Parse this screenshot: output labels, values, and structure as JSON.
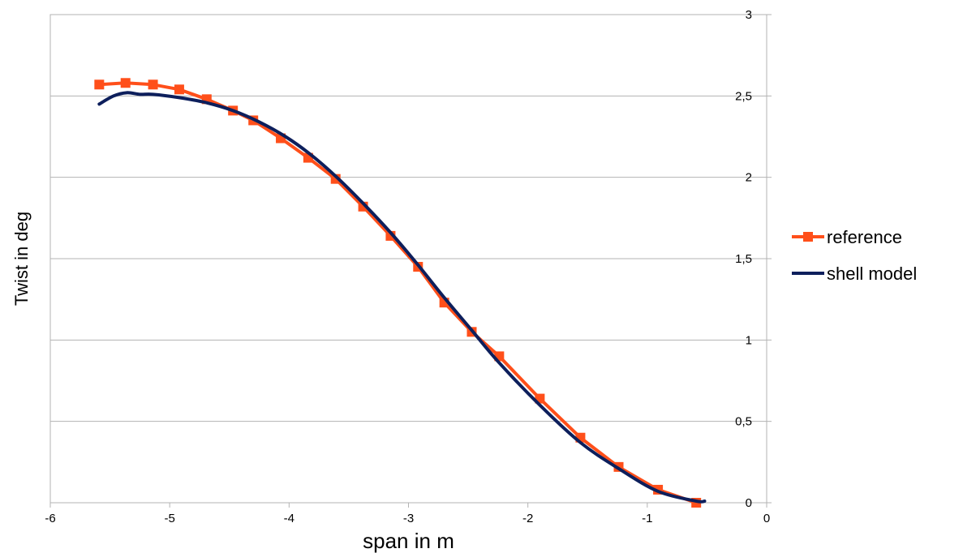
{
  "chart_data": {
    "type": "line",
    "title": "",
    "xlabel": "span in m",
    "ylabel": "Twist in deg",
    "xlim": [
      -6,
      0
    ],
    "ylim": [
      0,
      3
    ],
    "x_ticks": [
      -6,
      -5,
      -4,
      -3,
      -2,
      -1,
      0
    ],
    "x_tick_labels": [
      "-6",
      "-5",
      "-4",
      "-3",
      "-2",
      "-1",
      "0"
    ],
    "y_ticks": [
      0,
      0.5,
      1,
      1.5,
      2,
      2.5,
      3
    ],
    "y_tick_labels": [
      "0",
      "0,5",
      "1",
      "1,5",
      "2",
      "2,5",
      "3"
    ],
    "y_axis_position": "right",
    "grid": "horizontal",
    "legend_position": "right",
    "series": [
      {
        "name": "reference",
        "color": "#ff4f1a",
        "marker": "square",
        "x": [
          -5.59,
          -5.37,
          -5.14,
          -4.92,
          -4.69,
          -4.47,
          -4.3,
          -4.07,
          -3.84,
          -3.61,
          -3.38,
          -3.15,
          -2.92,
          -2.7,
          -2.47,
          -2.24,
          -1.9,
          -1.56,
          -1.24,
          -0.91,
          -0.59
        ],
        "y": [
          2.57,
          2.58,
          2.57,
          2.54,
          2.48,
          2.41,
          2.35,
          2.24,
          2.12,
          1.99,
          1.82,
          1.64,
          1.45,
          1.23,
          1.05,
          0.9,
          0.64,
          0.4,
          0.22,
          0.08,
          0.0
        ]
      },
      {
        "name": "shell model",
        "color": "#0d1f5c",
        "marker": "none",
        "x": [
          -5.59,
          -5.47,
          -5.36,
          -5.25,
          -5.14,
          -4.92,
          -4.7,
          -4.47,
          -4.25,
          -4.03,
          -3.82,
          -3.6,
          -3.38,
          -3.15,
          -2.93,
          -2.7,
          -2.47,
          -2.24,
          -1.9,
          -1.56,
          -1.24,
          -0.91,
          -0.59,
          -0.52
        ],
        "y": [
          2.45,
          2.5,
          2.52,
          2.51,
          2.51,
          2.49,
          2.46,
          2.41,
          2.34,
          2.25,
          2.14,
          2.0,
          1.84,
          1.66,
          1.47,
          1.26,
          1.06,
          0.86,
          0.6,
          0.37,
          0.21,
          0.07,
          0.01,
          0.01
        ]
      }
    ]
  }
}
